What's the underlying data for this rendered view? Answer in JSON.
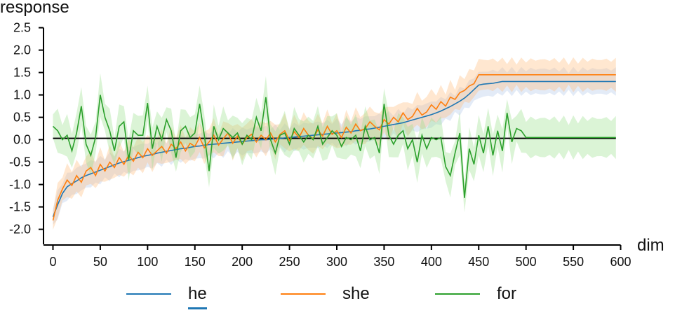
{
  "chart_data": {
    "type": "line",
    "title": "",
    "xlabel": "dim",
    "ylabel": "response",
    "xlim": [
      -10,
      610
    ],
    "ylim": [
      -2.35,
      2.65
    ],
    "x_ticks": [
      0,
      50,
      100,
      150,
      200,
      250,
      300,
      350,
      400,
      450,
      500,
      550,
      600
    ],
    "y_ticks": [
      -2.0,
      -1.5,
      -1.0,
      -0.5,
      0.0,
      0.5,
      1.0,
      1.5,
      2.0,
      2.5
    ],
    "y_tick_labels": [
      "-2.0",
      "-1.5",
      "-1.0",
      "-0.5",
      "0.0",
      "0.5",
      "1.0",
      "1.5",
      "2.0",
      "2.5"
    ],
    "reference_line": 0.03,
    "x_range": [
      0,
      595
    ],
    "x_step": 5,
    "series": [
      {
        "name": "he",
        "color": "#1f77b4",
        "band_color": "#aec7e8",
        "band_halfwidth": 0.25,
        "values": [
          -1.72,
          -1.45,
          -1.2,
          -1.05,
          -0.98,
          -0.92,
          -0.85,
          -0.8,
          -0.76,
          -0.72,
          -0.68,
          -0.64,
          -0.6,
          -0.56,
          -0.52,
          -0.49,
          -0.46,
          -0.43,
          -0.4,
          -0.37,
          -0.35,
          -0.33,
          -0.3,
          -0.28,
          -0.26,
          -0.24,
          -0.22,
          -0.2,
          -0.19,
          -0.17,
          -0.15,
          -0.14,
          -0.12,
          -0.11,
          -0.1,
          -0.09,
          -0.08,
          -0.07,
          -0.06,
          -0.05,
          -0.04,
          -0.03,
          -0.02,
          -0.01,
          0.0,
          0.0,
          0.01,
          0.02,
          0.03,
          0.04,
          0.05,
          0.06,
          0.07,
          0.08,
          0.09,
          0.1,
          0.11,
          0.12,
          0.13,
          0.14,
          0.15,
          0.16,
          0.17,
          0.18,
          0.2,
          0.21,
          0.23,
          0.24,
          0.26,
          0.28,
          0.3,
          0.32,
          0.34,
          0.36,
          0.38,
          0.41,
          0.44,
          0.47,
          0.5,
          0.53,
          0.56,
          0.6,
          0.64,
          0.69,
          0.74,
          0.8,
          0.86,
          0.93,
          1.02,
          1.12,
          1.22,
          1.24,
          1.25,
          1.26,
          1.28,
          1.3,
          1.3,
          1.3,
          1.3,
          1.3,
          1.3,
          1.3,
          1.3,
          1.3,
          1.3,
          1.3,
          1.3,
          1.3,
          1.3,
          1.3,
          1.3,
          1.3,
          1.3,
          1.3,
          1.3,
          1.3,
          1.3,
          1.3,
          1.3,
          1.3
        ]
      },
      {
        "name": "she",
        "color": "#ff7f0e",
        "band_color": "#ffbb78",
        "band_halfwidth": 0.3,
        "values": [
          -1.8,
          -1.35,
          -1.1,
          -0.9,
          -1.02,
          -0.8,
          -0.95,
          -0.7,
          -0.62,
          -0.8,
          -0.55,
          -0.7,
          -0.5,
          -0.62,
          -0.4,
          -0.55,
          -0.35,
          -0.48,
          -0.28,
          -0.4,
          -0.2,
          -0.35,
          -0.25,
          -0.15,
          -0.3,
          -0.1,
          -0.2,
          -0.05,
          -0.25,
          -0.08,
          -0.15,
          0.05,
          -0.18,
          -0.05,
          0.1,
          -0.12,
          0.02,
          0.15,
          -0.08,
          0.08,
          -0.1,
          0.05,
          0.12,
          -0.05,
          0.1,
          0.0,
          0.15,
          -0.05,
          0.12,
          0.2,
          -0.02,
          0.18,
          0.05,
          0.25,
          0.1,
          0.02,
          0.22,
          0.08,
          0.3,
          0.12,
          0.2,
          0.05,
          0.28,
          0.15,
          0.35,
          0.2,
          0.25,
          0.4,
          0.3,
          0.22,
          0.45,
          0.35,
          0.5,
          0.4,
          0.6,
          0.45,
          0.52,
          0.7,
          0.55,
          0.62,
          0.78,
          0.68,
          0.85,
          0.75,
          0.95,
          0.9,
          1.05,
          1.1,
          1.2,
          1.25,
          1.45,
          1.45,
          1.45,
          1.45,
          1.45,
          1.45,
          1.45,
          1.45,
          1.45,
          1.45,
          1.45,
          1.45,
          1.45,
          1.45,
          1.45,
          1.45,
          1.45,
          1.45,
          1.45,
          1.45,
          1.45,
          1.45,
          1.45,
          1.45,
          1.45,
          1.45,
          1.45,
          1.45,
          1.45,
          1.45
        ]
      },
      {
        "name": "for",
        "color": "#2ca02c",
        "band_color": "#98df8a",
        "band_halfwidth": 0.38,
        "values": [
          0.3,
          0.2,
          0.0,
          0.1,
          -0.25,
          0.15,
          0.75,
          -0.1,
          -0.35,
          0.05,
          1.0,
          0.5,
          0.2,
          -0.25,
          0.3,
          0.4,
          -0.45,
          0.2,
          0.1,
          0.1,
          0.82,
          -0.2,
          0.3,
          0.0,
          0.45,
          0.2,
          -0.4,
          0.2,
          0.3,
          0.05,
          0.15,
          0.8,
          0.1,
          -0.7,
          0.3,
          0.0,
          0.25,
          0.15,
          0.05,
          0.15,
          -0.1,
          0.1,
          0.0,
          0.5,
          0.2,
          0.95,
          0.0,
          -0.3,
          0.1,
          0.15,
          -0.1,
          0.25,
          0.1,
          -0.05,
          0.1,
          0.0,
          0.3,
          -0.1,
          0.05,
          0.2,
          0.1,
          -0.15,
          0.05,
          0.0,
          0.1,
          -0.25,
          0.3,
          0.0,
          0.05,
          -0.3,
          0.8,
          0.1,
          -0.1,
          0.1,
          0.2,
          -0.2,
          0.0,
          -0.5,
          0.1,
          -0.2,
          0.05,
          0.0,
          0.05,
          -0.6,
          -0.8,
          -0.3,
          0.15,
          -1.3,
          -0.2,
          -0.55,
          0.1,
          -0.3,
          0.3,
          -0.35,
          0.2,
          -0.25,
          0.6,
          -0.05,
          0.25,
          0.2,
          0.05,
          0.05,
          0.05,
          0.05,
          0.05,
          0.05,
          0.05,
          0.05,
          0.05,
          0.05,
          0.05,
          0.05,
          0.05,
          0.05,
          0.05,
          0.05,
          0.05,
          0.05,
          0.05,
          0.05
        ]
      }
    ]
  },
  "legend": {
    "items": [
      {
        "label": "he",
        "color": "#1f77b4"
      },
      {
        "label": "she",
        "color": "#ff7f0e"
      },
      {
        "label": "for",
        "color": "#2ca02c"
      }
    ]
  }
}
